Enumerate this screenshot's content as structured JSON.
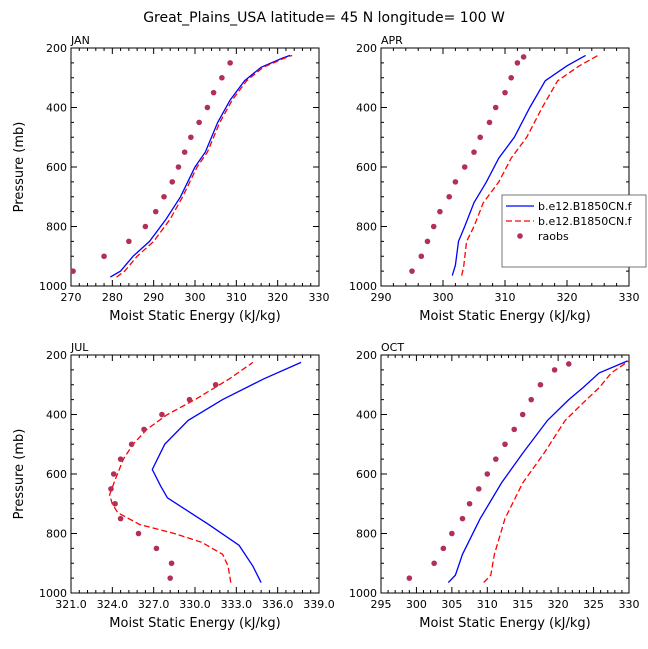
{
  "title": "Great_Plains_USA  latitude= 45 N longitude= 100 W",
  "colors": {
    "model1": "#0000ff",
    "model2": "#ff0000",
    "raobs": "#b0305a"
  },
  "legend": {
    "entries": [
      {
        "label": "b.e12.B1850CN.f",
        "style": "solid",
        "color": "#0000ff"
      },
      {
        "label": "b.e12.B1850CN.f",
        "style": "dashed",
        "color": "#ff0000"
      },
      {
        "label": "raobs",
        "style": "marker",
        "color": "#b0305a"
      }
    ]
  },
  "chart_data": [
    {
      "type": "line",
      "panel_label": "JAN",
      "xlabel": "Moist Static Energy (kJ/kg)",
      "ylabel": "Pressure (mb)",
      "xlim": [
        270,
        330
      ],
      "ylim": [
        1000,
        200
      ],
      "xticks": [
        270,
        280,
        290,
        300,
        310,
        320,
        330
      ],
      "xtick_labels": [
        "270",
        "280",
        "290",
        "300",
        "310",
        "320",
        "330"
      ],
      "yticks": [
        200,
        400,
        600,
        800,
        1000
      ],
      "ytick_labels": [
        "200",
        "400",
        "600",
        "800",
        "1000"
      ],
      "series": [
        {
          "style": "solid",
          "color": "#0000ff",
          "x": [
            279.5,
            282,
            285,
            289,
            293,
            296.5,
            300,
            302.5,
            305.5,
            308.5,
            312,
            316,
            321,
            323
          ],
          "y": [
            970,
            950,
            900,
            850,
            775,
            700,
            600,
            550,
            450,
            375,
            310,
            265,
            235,
            225
          ]
        },
        {
          "style": "dashed",
          "color": "#ff0000",
          "x": [
            281,
            283,
            286,
            290,
            294,
            297,
            300.5,
            303,
            306,
            309,
            312.5,
            316.5,
            321.5,
            323.5
          ],
          "y": [
            970,
            950,
            900,
            850,
            775,
            700,
            600,
            550,
            450,
            375,
            310,
            265,
            235,
            225
          ]
        },
        {
          "style": "marker",
          "color": "#b0305a",
          "x": [
            270.5,
            278,
            284,
            288,
            290.5,
            292.5,
            294.5,
            296,
            297.5,
            299,
            301,
            303,
            304.5,
            306.5,
            308.5
          ],
          "y": [
            950,
            900,
            850,
            800,
            750,
            700,
            650,
            600,
            550,
            500,
            450,
            400,
            350,
            300,
            250
          ]
        }
      ]
    },
    {
      "type": "line",
      "panel_label": "APR",
      "xlabel": "Moist Static Energy (kJ/kg)",
      "ylabel": "",
      "xlim": [
        290,
        330
      ],
      "ylim": [
        1000,
        200
      ],
      "xticks": [
        290,
        300,
        310,
        320,
        330
      ],
      "xtick_labels": [
        "290",
        "300",
        "310",
        "320",
        "330"
      ],
      "yticks": [
        200,
        400,
        600,
        800,
        1000
      ],
      "ytick_labels": [
        "200",
        "400",
        "600",
        "800",
        "1000"
      ],
      "series": [
        {
          "style": "solid",
          "color": "#0000ff",
          "x": [
            301.5,
            302,
            302.5,
            303.5,
            305,
            307,
            309,
            311.5,
            314,
            316.5,
            320,
            323
          ],
          "y": [
            965,
            930,
            850,
            800,
            720,
            650,
            570,
            500,
            400,
            310,
            260,
            225
          ]
        },
        {
          "style": "dashed",
          "color": "#ff0000",
          "x": [
            303,
            303.3,
            303.8,
            305,
            306.5,
            309,
            311,
            313.5,
            316,
            318.5,
            322,
            325
          ],
          "y": [
            965,
            940,
            850,
            800,
            720,
            650,
            570,
            500,
            400,
            310,
            260,
            225
          ]
        },
        {
          "style": "marker",
          "color": "#b0305a",
          "x": [
            295,
            296.5,
            297.5,
            298.5,
            299.5,
            301,
            302,
            303.5,
            305,
            306,
            307.5,
            308.5,
            310,
            311,
            312,
            313
          ],
          "y": [
            950,
            900,
            850,
            800,
            750,
            700,
            650,
            600,
            550,
            500,
            450,
            400,
            350,
            300,
            250,
            230
          ]
        }
      ]
    },
    {
      "type": "line",
      "panel_label": "JUL",
      "xlabel": "Moist Static Energy (kJ/kg)",
      "ylabel": "Pressure (mb)",
      "xlim": [
        321,
        339
      ],
      "ylim": [
        1000,
        200
      ],
      "xticks": [
        321,
        324,
        327,
        330,
        333,
        336,
        339
      ],
      "xtick_labels": [
        "321.0",
        "324.0",
        "327.0",
        "330.0",
        "333.0",
        "336.0",
        "339.0"
      ],
      "yticks": [
        200,
        400,
        600,
        800,
        1000
      ],
      "ytick_labels": [
        "200",
        "400",
        "600",
        "800",
        "1000"
      ],
      "series": [
        {
          "style": "solid",
          "color": "#0000ff",
          "x": [
            334.8,
            334.2,
            333.2,
            331,
            328,
            327.5,
            326.9,
            327.8,
            329.5,
            332,
            335,
            337.7
          ],
          "y": [
            965,
            910,
            840,
            770,
            680,
            640,
            585,
            500,
            420,
            350,
            280,
            225
          ]
        },
        {
          "style": "dashed",
          "color": "#ff0000",
          "x": [
            332.6,
            332.4,
            332,
            330.5,
            328.5,
            326,
            324.4,
            324,
            323.8,
            324.2,
            324.8,
            325.5,
            326.5,
            328,
            330,
            332.5,
            334.2
          ],
          "y": [
            965,
            910,
            870,
            830,
            800,
            770,
            730,
            700,
            670,
            620,
            550,
            500,
            450,
            400,
            350,
            280,
            225
          ]
        },
        {
          "style": "marker",
          "color": "#b0305a",
          "x": [
            328.2,
            328.3,
            327.2,
            325.9,
            324.6,
            324.2,
            323.9,
            324.1,
            324.6,
            325.4,
            326.3,
            327.6,
            329.6,
            331.5
          ],
          "y": [
            950,
            900,
            850,
            800,
            750,
            700,
            650,
            600,
            550,
            500,
            450,
            400,
            350,
            300
          ]
        }
      ]
    },
    {
      "type": "line",
      "panel_label": "OCT",
      "xlabel": "Moist Static Energy (kJ/kg)",
      "ylabel": "",
      "xlim": [
        295,
        330
      ],
      "ylim": [
        1000,
        200
      ],
      "xticks": [
        295,
        300,
        305,
        310,
        315,
        320,
        325,
        330
      ],
      "xtick_labels": [
        "295",
        "300",
        "305",
        "310",
        "315",
        "320",
        "325",
        "330"
      ],
      "yticks": [
        200,
        400,
        600,
        800,
        1000
      ],
      "ytick_labels": [
        "200",
        "400",
        "600",
        "800",
        "1000"
      ],
      "series": [
        {
          "style": "solid",
          "color": "#0000ff",
          "x": [
            304.5,
            305.5,
            306.5,
            309,
            312,
            315,
            318.5,
            321.5,
            323.5,
            325.8,
            329.8
          ],
          "y": [
            965,
            940,
            870,
            750,
            630,
            530,
            420,
            350,
            310,
            260,
            220
          ]
        },
        {
          "style": "dashed",
          "color": "#ff0000",
          "x": [
            309.5,
            310.5,
            311,
            312.5,
            315,
            318,
            321,
            324,
            325.8,
            327.5,
            330
          ],
          "y": [
            965,
            940,
            870,
            750,
            630,
            530,
            420,
            350,
            310,
            260,
            220
          ]
        },
        {
          "style": "marker",
          "color": "#b0305a",
          "x": [
            299,
            302.5,
            303.8,
            305,
            306.5,
            307.5,
            308.8,
            310,
            311.2,
            312.5,
            313.8,
            315,
            316.2,
            317.5,
            319.5,
            321.5
          ],
          "y": [
            950,
            900,
            850,
            800,
            750,
            700,
            650,
            600,
            550,
            500,
            450,
            400,
            350,
            300,
            250,
            230
          ]
        }
      ]
    }
  ]
}
